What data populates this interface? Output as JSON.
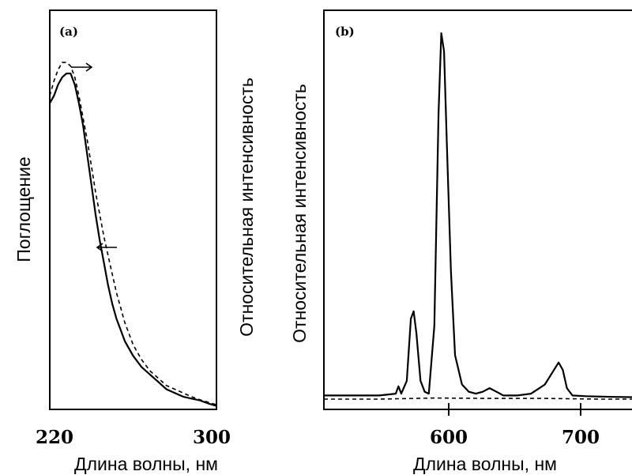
{
  "chart_data": [
    {
      "type": "line",
      "panel_label": "(a)",
      "xlabel": "Длина волны, нм",
      "ylabel_left": "Поглощение",
      "ylabel_right": "Относительная интенсивность",
      "xlim": [
        220,
        300
      ],
      "xticks": [
        "220",
        "300"
      ],
      "grid": false,
      "annotations": [
        "arrow-right",
        "arrow-left"
      ],
      "series": [
        {
          "style": "solid",
          "x": [
            220,
            222,
            224,
            226,
            228,
            230,
            232,
            234,
            236,
            238,
            240,
            242,
            244,
            246,
            248,
            250,
            252,
            254,
            256,
            258,
            260,
            264,
            268,
            272,
            276,
            280,
            284,
            288,
            292,
            296,
            300
          ],
          "y": [
            0.82,
            0.84,
            0.87,
            0.89,
            0.9,
            0.9,
            0.87,
            0.82,
            0.76,
            0.68,
            0.6,
            0.52,
            0.45,
            0.39,
            0.33,
            0.28,
            0.24,
            0.21,
            0.18,
            0.16,
            0.14,
            0.11,
            0.09,
            0.07,
            0.05,
            0.04,
            0.03,
            0.025,
            0.02,
            0.012,
            0.005
          ]
        },
        {
          "style": "dashed",
          "x": [
            220,
            222,
            224,
            226,
            228,
            230,
            232,
            234,
            236,
            238,
            240,
            242,
            244,
            246,
            248,
            250,
            252,
            254,
            256,
            258,
            260,
            264,
            268,
            272,
            276,
            280,
            284,
            288,
            292,
            296,
            300
          ],
          "y": [
            0.84,
            0.88,
            0.91,
            0.93,
            0.93,
            0.92,
            0.89,
            0.84,
            0.78,
            0.72,
            0.65,
            0.58,
            0.52,
            0.46,
            0.41,
            0.36,
            0.31,
            0.27,
            0.23,
            0.2,
            0.17,
            0.13,
            0.1,
            0.08,
            0.06,
            0.05,
            0.04,
            0.03,
            0.022,
            0.015,
            0.008
          ]
        }
      ]
    },
    {
      "type": "line",
      "panel_label": "(b)",
      "xlabel": "Длина волны, нм",
      "ylabel": "Относительная интенсивность",
      "xlim": [
        520,
        750
      ],
      "xticks": [
        "600",
        "700"
      ],
      "grid": false,
      "series": [
        {
          "style": "solid",
          "x": [
            520,
            560,
            572,
            574,
            576,
            580,
            583,
            585,
            587,
            590,
            593,
            596,
            600,
            603,
            605,
            607,
            609,
            612,
            615,
            620,
            625,
            630,
            635,
            640,
            645,
            650,
            660,
            670,
            680,
            685,
            690,
            693,
            696,
            700,
            710,
            730,
            750
          ],
          "y": [
            0.01,
            0.01,
            0.015,
            0.035,
            0.015,
            0.05,
            0.22,
            0.24,
            0.18,
            0.05,
            0.02,
            0.015,
            0.2,
            0.78,
            1.0,
            0.95,
            0.7,
            0.35,
            0.12,
            0.04,
            0.02,
            0.015,
            0.02,
            0.03,
            0.02,
            0.01,
            0.01,
            0.015,
            0.04,
            0.07,
            0.1,
            0.08,
            0.03,
            0.01,
            0.008,
            0.006,
            0.005
          ]
        },
        {
          "style": "dashed",
          "x": [
            520,
            560,
            600,
            640,
            680,
            720,
            750
          ],
          "y": [
            0.0,
            0.0,
            0.003,
            0.002,
            0.002,
            0.0,
            0.0
          ]
        }
      ]
    }
  ]
}
